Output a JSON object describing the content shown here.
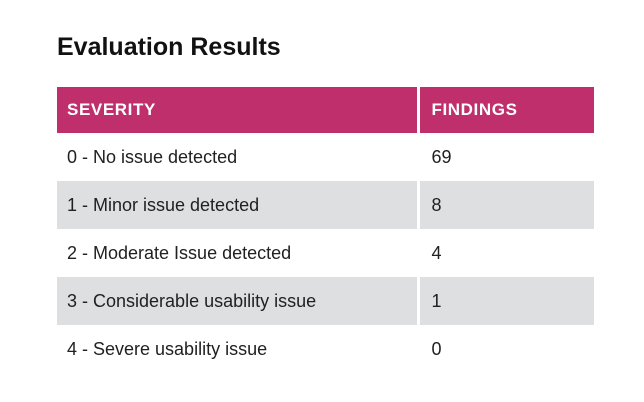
{
  "page": {
    "title": "Evaluation Results"
  },
  "colors": {
    "page_bg": "#FFFFFF",
    "header_bg": "#BE2F6B",
    "header_text": "#FFFFFF",
    "stripe_row_bg": "#DEDFE0",
    "row_bg": "#FFFFFF",
    "body_text": "#212121",
    "title_text": "#111111"
  },
  "table": {
    "columns": [
      "SEVERITY",
      "FINDINGS"
    ],
    "rows": [
      {
        "severity": "0 - No issue detected",
        "findings": "69"
      },
      {
        "severity": "1 - Minor issue detected",
        "findings": "8"
      },
      {
        "severity": "2 - Moderate Issue detected",
        "findings": "4"
      },
      {
        "severity": "3 - Considerable usability issue",
        "findings": "1"
      },
      {
        "severity": "4 - Severe usability issue",
        "findings": "0"
      }
    ]
  },
  "chart_data": {
    "type": "table",
    "title": "Evaluation Results",
    "columns": [
      "SEVERITY",
      "FINDINGS"
    ],
    "categories": [
      "0 - No issue detected",
      "1 - Minor issue detected",
      "2 - Moderate Issue detected",
      "3 - Considerable usability issue",
      "4 - Severe usability issue"
    ],
    "values": [
      69,
      8,
      4,
      1,
      0
    ],
    "layout": {
      "header_bg": "#BE2F6B",
      "header_text_color": "#FFFFFF",
      "zebra_striping": true,
      "stripe_bg": "#DEDFE0",
      "column_divider_color": "#FFFFFF"
    }
  }
}
